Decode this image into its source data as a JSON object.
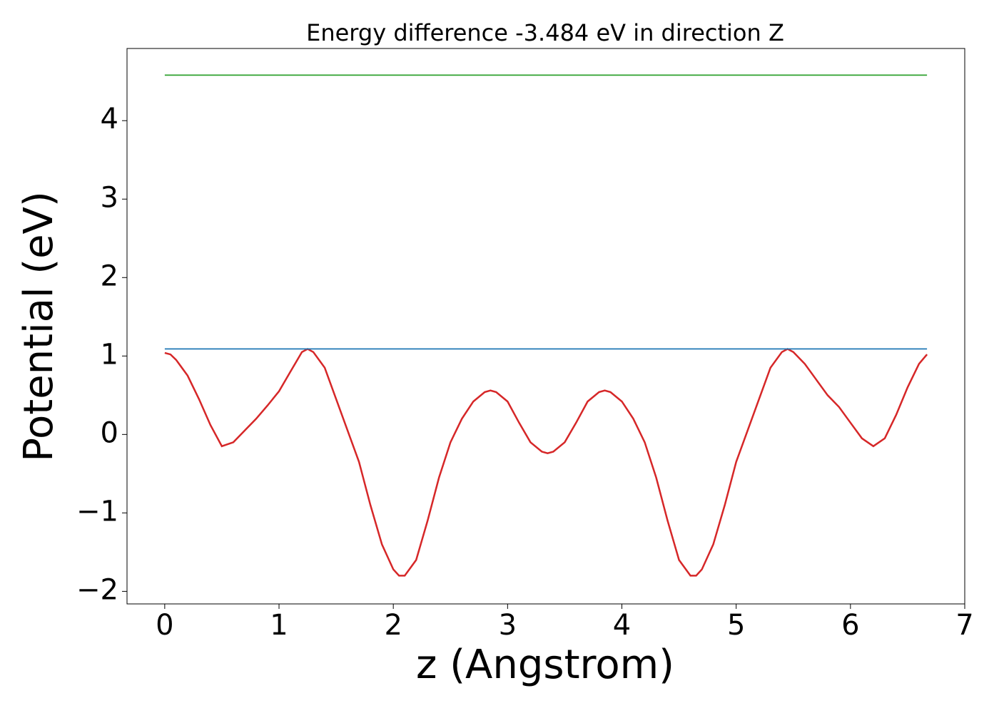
{
  "chart_data": {
    "type": "line",
    "title": "Energy difference -3.484 eV in direction Z",
    "xlabel": "z (Angstrom)",
    "ylabel": "Potential (eV)",
    "xlim": [
      -0.33,
      7
    ],
    "ylim": [
      -2.16,
      4.92
    ],
    "xticks": [
      0,
      1,
      2,
      3,
      4,
      5,
      6,
      7
    ],
    "yticks": [
      {
        "value": -2,
        "label": "−2"
      },
      {
        "value": -1,
        "label": "−1"
      },
      0,
      1,
      2,
      3,
      4
    ],
    "grid": false,
    "series": [
      {
        "color": "#d62728",
        "x": [
          0,
          0.05,
          0.1,
          0.2,
          0.3,
          0.4,
          0.5,
          0.6,
          0.7,
          0.8,
          0.9,
          1.0,
          1.1,
          1.2,
          1.25,
          1.3,
          1.4,
          1.5,
          1.6,
          1.7,
          1.8,
          1.9,
          2.0,
          2.05,
          2.1,
          2.2,
          2.3,
          2.4,
          2.5,
          2.6,
          2.7,
          2.8,
          2.85,
          2.9,
          3.0,
          3.1,
          3.2,
          3.3,
          3.35,
          3.4,
          3.5,
          3.6,
          3.7,
          3.8,
          3.85,
          3.9,
          4.0,
          4.1,
          4.2,
          4.3,
          4.4,
          4.5,
          4.6,
          4.65,
          4.7,
          4.8,
          4.9,
          5.0,
          5.1,
          5.2,
          5.3,
          5.4,
          5.45,
          5.5,
          5.6,
          5.7,
          5.8,
          5.9,
          6.0,
          6.1,
          6.2,
          6.3,
          6.4,
          6.5,
          6.6,
          6.67
        ],
        "values": [
          1.04,
          1.02,
          0.95,
          0.75,
          0.45,
          0.12,
          -0.15,
          -0.1,
          0.05,
          0.2,
          0.37,
          0.55,
          0.8,
          1.05,
          1.09,
          1.05,
          0.85,
          0.45,
          0.05,
          -0.35,
          -0.9,
          -1.4,
          -1.72,
          -1.8,
          -1.8,
          -1.6,
          -1.1,
          -0.55,
          -0.1,
          0.2,
          0.42,
          0.54,
          0.56,
          0.54,
          0.42,
          0.15,
          -0.1,
          -0.22,
          -0.24,
          -0.22,
          -0.1,
          0.15,
          0.42,
          0.54,
          0.56,
          0.54,
          0.42,
          0.2,
          -0.1,
          -0.55,
          -1.1,
          -1.6,
          -1.8,
          -1.8,
          -1.72,
          -1.4,
          -0.9,
          -0.35,
          0.05,
          0.45,
          0.85,
          1.05,
          1.09,
          1.05,
          0.9,
          0.7,
          0.5,
          0.35,
          0.15,
          -0.05,
          -0.15,
          -0.05,
          0.25,
          0.6,
          0.9,
          1.02
        ]
      },
      {
        "color": "#1f77b4",
        "x": [
          0,
          6.67
        ],
        "values": [
          1.09,
          1.09
        ]
      },
      {
        "color": "#2ca02c",
        "x": [
          0,
          6.67
        ],
        "values": [
          4.58,
          4.58
        ]
      }
    ]
  }
}
